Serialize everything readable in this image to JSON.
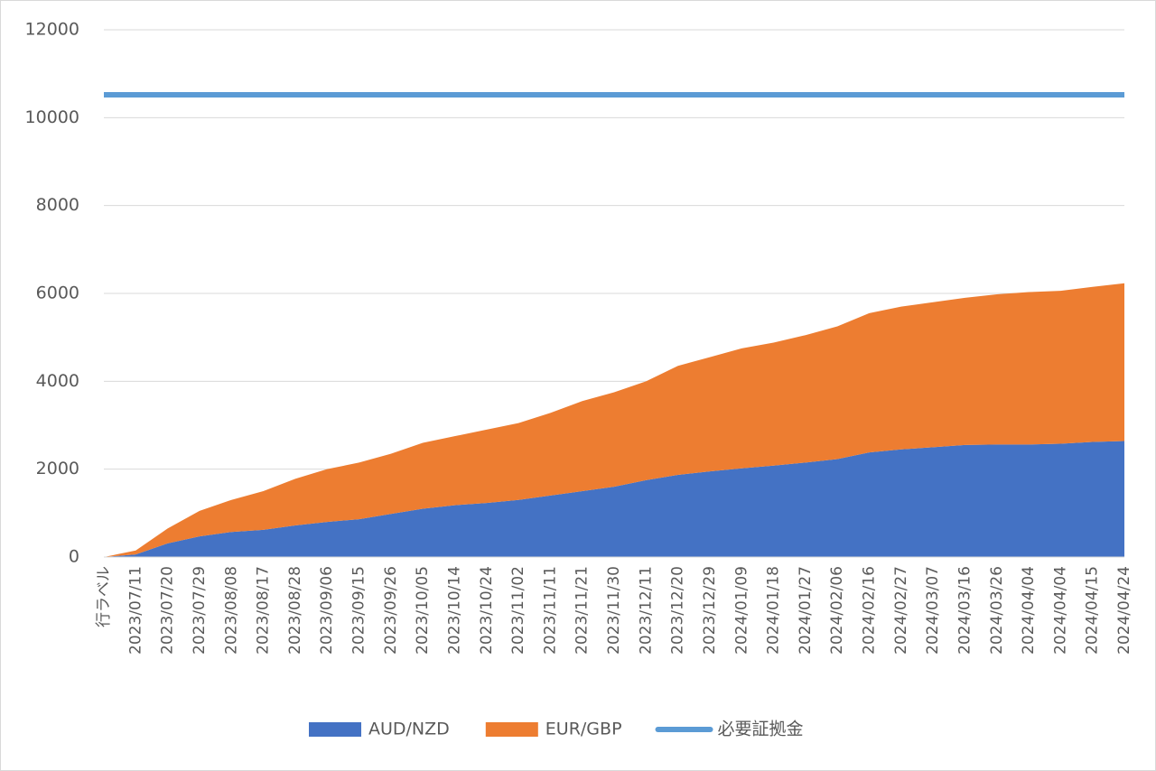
{
  "chart_data": {
    "type": "area",
    "stacked": true,
    "categories": [
      "行ラベル",
      "2023/07/11",
      "2023/07/20",
      "2023/07/29",
      "2023/08/08",
      "2023/08/17",
      "2023/08/28",
      "2023/09/06",
      "2023/09/15",
      "2023/09/26",
      "2023/10/05",
      "2023/10/14",
      "2023/10/24",
      "2023/11/02",
      "2023/11/11",
      "2023/11/21",
      "2023/11/30",
      "2023/12/11",
      "2023/12/20",
      "2023/12/29",
      "2024/01/09",
      "2024/01/18",
      "2024/01/27",
      "2024/02/06",
      "2024/02/16",
      "2024/02/27",
      "2024/03/07",
      "2024/03/16",
      "2024/03/26",
      "2024/04/04",
      "2024/04/04",
      "2024/04/15",
      "2024/04/24"
    ],
    "series": [
      {
        "name": "AUD/NZD",
        "color": "#4472c4",
        "type": "area",
        "values": [
          0,
          60,
          310,
          470,
          570,
          620,
          720,
          800,
          860,
          980,
          1100,
          1180,
          1230,
          1300,
          1400,
          1500,
          1600,
          1750,
          1870,
          1950,
          2020,
          2080,
          2150,
          2230,
          2380,
          2450,
          2500,
          2550,
          2560,
          2560,
          2580,
          2620,
          2640
        ]
      },
      {
        "name": "EUR/GBP",
        "color": "#ed7d31",
        "type": "area",
        "values": [
          0,
          90,
          340,
          580,
          730,
          880,
          1060,
          1200,
          1290,
          1370,
          1500,
          1570,
          1670,
          1750,
          1880,
          2050,
          2150,
          2250,
          2480,
          2600,
          2730,
          2800,
          2900,
          3020,
          3170,
          3250,
          3300,
          3350,
          3420,
          3470,
          3480,
          3530,
          3590
        ]
      },
      {
        "name": "必要証拠金",
        "color": "#5b9bd5",
        "type": "line",
        "values": [
          10520,
          10520,
          10520,
          10520,
          10520,
          10520,
          10520,
          10520,
          10520,
          10520,
          10520,
          10520,
          10520,
          10520,
          10520,
          10520,
          10520,
          10520,
          10520,
          10520,
          10520,
          10520,
          10520,
          10520,
          10520,
          10520,
          10520,
          10520,
          10520,
          10520,
          10520,
          10520,
          10520
        ]
      }
    ],
    "ylim": [
      0,
      12000
    ],
    "yticks": [
      0,
      2000,
      4000,
      6000,
      8000,
      10000,
      12000
    ],
    "grid": true,
    "legend": "bottom"
  }
}
